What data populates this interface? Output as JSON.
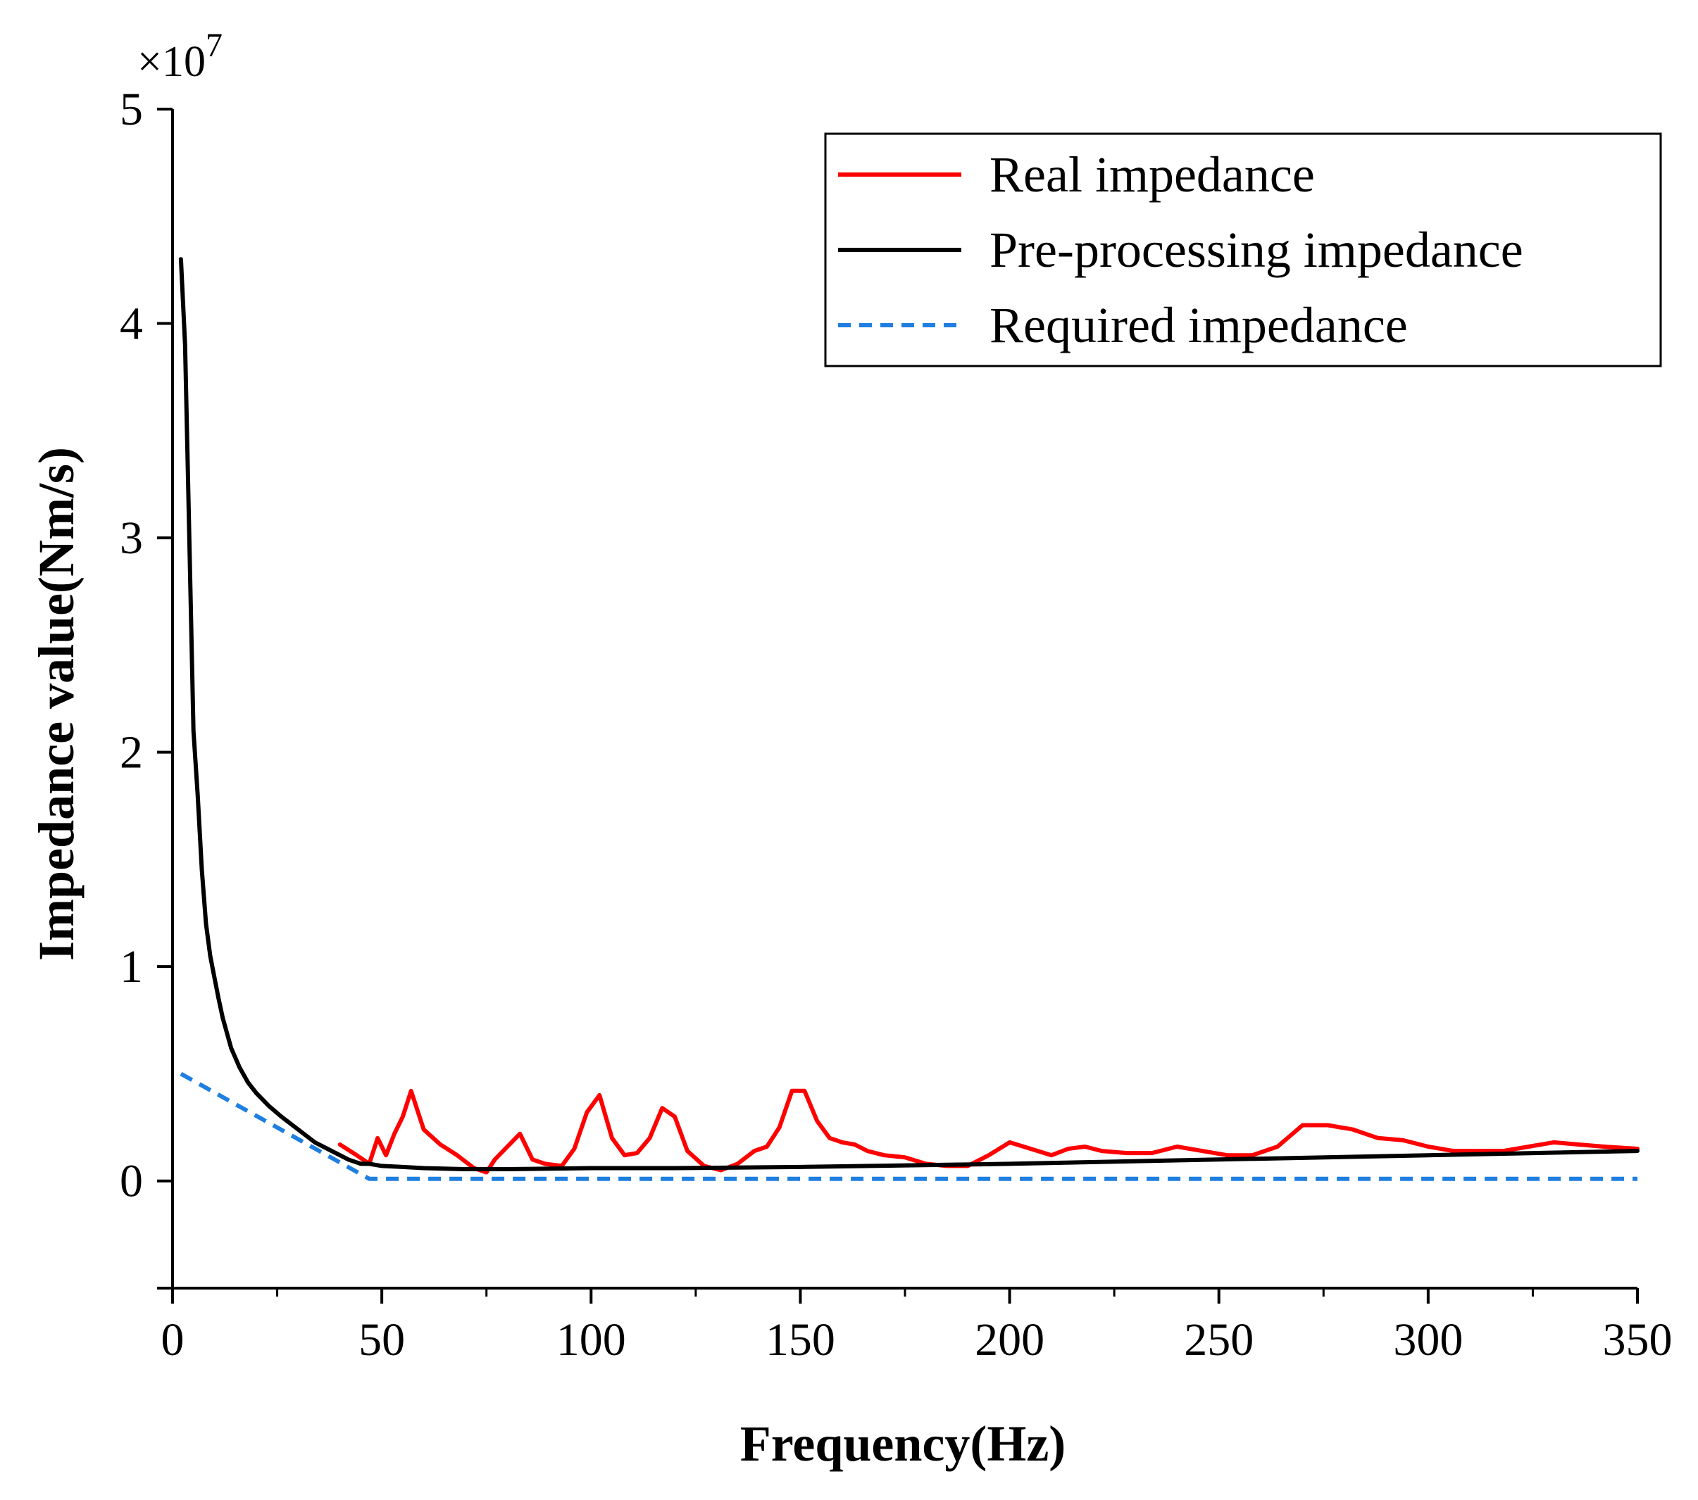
{
  "chart_data": {
    "type": "line",
    "title": "",
    "xlabel": "Frequency(Hz)",
    "ylabel": "Impedance value(Nm/s)",
    "y_multiplier": "×10",
    "y_multiplier_exponent": "7",
    "xlim": [
      0,
      350
    ],
    "ylim": [
      -0.5,
      5
    ],
    "x_ticks": [
      0,
      50,
      100,
      150,
      200,
      250,
      300,
      350
    ],
    "x_tick_labels": [
      "0",
      "50",
      "100",
      "150",
      "200",
      "250",
      "300",
      "350"
    ],
    "y_ticks": [
      0,
      1,
      2,
      3,
      4,
      5
    ],
    "y_tick_labels": [
      "0",
      "1",
      "2",
      "3",
      "4",
      "5"
    ],
    "grid": false,
    "legend_position": "top-right",
    "series": [
      {
        "name": "Real impedance",
        "color": "#ff0000",
        "style": "solid",
        "x": [
          40,
          44,
          47,
          49,
          51,
          53,
          55,
          57,
          60,
          64,
          68,
          72,
          75,
          77,
          80,
          83,
          86,
          89,
          93,
          96,
          99,
          102,
          105,
          108,
          111,
          114,
          117,
          120,
          123,
          127,
          131,
          135,
          139,
          142,
          145,
          148,
          151,
          154,
          157,
          160,
          163,
          166,
          170,
          175,
          180,
          185,
          190,
          195,
          200,
          205,
          210,
          214,
          218,
          222,
          228,
          234,
          240,
          246,
          252,
          258,
          264,
          270,
          276,
          282,
          288,
          294,
          300,
          306,
          312,
          318,
          324,
          330,
          336,
          342,
          350
        ],
        "y": [
          0.17,
          0.12,
          0.08,
          0.2,
          0.12,
          0.22,
          0.3,
          0.42,
          0.24,
          0.17,
          0.12,
          0.06,
          0.04,
          0.1,
          0.16,
          0.22,
          0.1,
          0.08,
          0.07,
          0.15,
          0.32,
          0.4,
          0.2,
          0.12,
          0.13,
          0.2,
          0.34,
          0.3,
          0.14,
          0.07,
          0.05,
          0.08,
          0.14,
          0.16,
          0.25,
          0.42,
          0.42,
          0.28,
          0.2,
          0.18,
          0.17,
          0.14,
          0.12,
          0.11,
          0.08,
          0.07,
          0.07,
          0.12,
          0.18,
          0.15,
          0.12,
          0.15,
          0.16,
          0.14,
          0.13,
          0.13,
          0.16,
          0.14,
          0.12,
          0.12,
          0.16,
          0.26,
          0.26,
          0.24,
          0.2,
          0.19,
          0.16,
          0.14,
          0.14,
          0.14,
          0.16,
          0.18,
          0.17,
          0.16,
          0.15
        ]
      },
      {
        "name": "Pre-processing impedance",
        "color": "#000000",
        "style": "solid",
        "x": [
          2,
          3,
          4,
          5,
          6,
          7,
          8,
          9,
          10,
          11,
          12,
          14,
          16,
          18,
          20,
          23,
          26,
          30,
          34,
          38,
          42,
          45,
          47,
          50,
          55,
          60,
          70,
          80,
          100,
          120,
          150,
          200,
          250,
          300,
          350
        ],
        "y": [
          4.3,
          3.9,
          3.0,
          2.1,
          1.8,
          1.45,
          1.2,
          1.05,
          0.95,
          0.85,
          0.76,
          0.62,
          0.53,
          0.46,
          0.41,
          0.35,
          0.3,
          0.24,
          0.18,
          0.14,
          0.1,
          0.08,
          0.08,
          0.07,
          0.065,
          0.06,
          0.055,
          0.055,
          0.06,
          0.06,
          0.065,
          0.08,
          0.1,
          0.12,
          0.14
        ]
      },
      {
        "name": "Required impedance",
        "color": "#1f7fe0",
        "style": "dashed",
        "x": [
          2,
          47,
          350
        ],
        "y": [
          0.5,
          0.01,
          0.01
        ]
      }
    ]
  }
}
